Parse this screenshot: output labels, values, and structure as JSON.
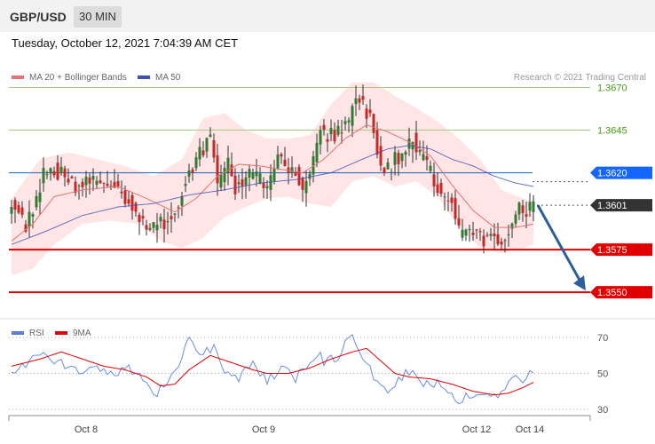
{
  "header": {
    "pair": "GBP/USD",
    "timeframe": "30 MIN"
  },
  "datetime": "Tuesday, October 12, 2021 7:04:39 AM CET",
  "legend": {
    "ma20": "MA 20 + Bollinger Bands",
    "ma50": "MA 50",
    "rsi": "RSI",
    "rsi_ma": "9MA"
  },
  "credit": "Research © 2021 Trading Central",
  "colors": {
    "bullish": "#2e7d32",
    "bearish": "#c62828",
    "ma20": "#e57373",
    "ma50": "#3f51b5",
    "bollinger": "#ffe0e0",
    "resistance": "#a5c97f",
    "pivot": "#1565c0",
    "support": "#e00000"
  },
  "chart_data": [
    {
      "type": "candlestick",
      "ylim": [
        1.3535,
        1.369
      ],
      "levels": [
        {
          "value": 1.367,
          "label": "1.3670",
          "kind": "resistance"
        },
        {
          "value": 1.3645,
          "label": "1.3645",
          "kind": "resistance"
        },
        {
          "value": 1.362,
          "label": "1.3620",
          "kind": "pivot"
        },
        {
          "value": 1.3601,
          "label": "1.3601",
          "kind": "last"
        },
        {
          "value": 1.3575,
          "label": "1.3575",
          "kind": "support"
        },
        {
          "value": 1.355,
          "label": "1.3550",
          "kind": "support"
        }
      ],
      "x_ticks": [
        {
          "label": "Oct 8",
          "index": 21
        },
        {
          "label": "Oct 9",
          "index": 71
        },
        {
          "label": "Oct 12",
          "index": 131
        },
        {
          "label": "Oct 14",
          "index": 146
        }
      ],
      "close_path": [
        [
          0,
          1.3605
        ],
        [
          4,
          1.3588
        ],
        [
          6,
          1.36
        ],
        [
          9,
          1.362
        ],
        [
          12,
          1.3622
        ],
        [
          18,
          1.3612
        ],
        [
          24,
          1.3615
        ],
        [
          30,
          1.3612
        ],
        [
          34,
          1.36
        ],
        [
          38,
          1.3588
        ],
        [
          43,
          1.359
        ],
        [
          47,
          1.3603
        ],
        [
          50,
          1.362
        ],
        [
          53,
          1.3632
        ],
        [
          56,
          1.364
        ],
        [
          58,
          1.3615
        ],
        [
          61,
          1.3625
        ],
        [
          63,
          1.3612
        ],
        [
          66,
          1.3618
        ],
        [
          70,
          1.3616
        ],
        [
          72,
          1.361
        ],
        [
          75,
          1.3632
        ],
        [
          77,
          1.3625
        ],
        [
          80,
          1.3622
        ],
        [
          82,
          1.3608
        ],
        [
          85,
          1.3628
        ],
        [
          87,
          1.3645
        ],
        [
          89,
          1.364
        ],
        [
          92,
          1.3645
        ],
        [
          95,
          1.365
        ],
        [
          97,
          1.3665
        ],
        [
          99,
          1.366
        ],
        [
          101,
          1.3652
        ],
        [
          103,
          1.3632
        ],
        [
          105,
          1.362
        ],
        [
          108,
          1.3628
        ],
        [
          111,
          1.3632
        ],
        [
          113,
          1.364
        ],
        [
          115,
          1.363
        ],
        [
          117,
          1.3623
        ],
        [
          120,
          1.3612
        ],
        [
          122,
          1.3606
        ],
        [
          124,
          1.3602
        ],
        [
          126,
          1.3586
        ],
        [
          128,
          1.3583
        ],
        [
          130,
          1.3586
        ],
        [
          133,
          1.358
        ],
        [
          136,
          1.3583
        ],
        [
          138,
          1.3579
        ],
        [
          140,
          1.3588
        ],
        [
          142,
          1.3599
        ],
        [
          145,
          1.3598
        ],
        [
          147,
          1.3601
        ]
      ],
      "ma20_path": [
        [
          0,
          1.358
        ],
        [
          6,
          1.359
        ],
        [
          12,
          1.3606
        ],
        [
          20,
          1.361
        ],
        [
          30,
          1.3612
        ],
        [
          38,
          1.3605
        ],
        [
          46,
          1.3597
        ],
        [
          52,
          1.3605
        ],
        [
          58,
          1.3618
        ],
        [
          64,
          1.3625
        ],
        [
          70,
          1.3624
        ],
        [
          76,
          1.3622
        ],
        [
          82,
          1.362
        ],
        [
          88,
          1.3628
        ],
        [
          94,
          1.364
        ],
        [
          100,
          1.3648
        ],
        [
          106,
          1.3644
        ],
        [
          112,
          1.3638
        ],
        [
          118,
          1.363
        ],
        [
          124,
          1.3613
        ],
        [
          130,
          1.3598
        ],
        [
          136,
          1.3588
        ],
        [
          142,
          1.3588
        ],
        [
          147,
          1.359
        ]
      ],
      "bollinger_upper": [
        [
          0,
          1.3605
        ],
        [
          8,
          1.3628
        ],
        [
          16,
          1.3632
        ],
        [
          24,
          1.3628
        ],
        [
          32,
          1.3624
        ],
        [
          40,
          1.3618
        ],
        [
          48,
          1.3628
        ],
        [
          54,
          1.3652
        ],
        [
          60,
          1.3655
        ],
        [
          66,
          1.3645
        ],
        [
          72,
          1.364
        ],
        [
          78,
          1.364
        ],
        [
          84,
          1.3642
        ],
        [
          90,
          1.366
        ],
        [
          96,
          1.3673
        ],
        [
          102,
          1.3673
        ],
        [
          108,
          1.3665
        ],
        [
          114,
          1.3658
        ],
        [
          120,
          1.365
        ],
        [
          126,
          1.364
        ],
        [
          132,
          1.3628
        ],
        [
          138,
          1.361
        ],
        [
          144,
          1.3605
        ],
        [
          147,
          1.3603
        ]
      ],
      "bollinger_lower": [
        [
          0,
          1.356
        ],
        [
          6,
          1.3564
        ],
        [
          12,
          1.3578
        ],
        [
          20,
          1.359
        ],
        [
          28,
          1.3592
        ],
        [
          36,
          1.359
        ],
        [
          42,
          1.358
        ],
        [
          48,
          1.3576
        ],
        [
          54,
          1.3582
        ],
        [
          60,
          1.3594
        ],
        [
          66,
          1.36
        ],
        [
          72,
          1.3605
        ],
        [
          78,
          1.3606
        ],
        [
          84,
          1.3602
        ],
        [
          90,
          1.36
        ],
        [
          96,
          1.3615
        ],
        [
          102,
          1.3618
        ],
        [
          108,
          1.3612
        ],
        [
          114,
          1.3615
        ],
        [
          120,
          1.3606
        ],
        [
          126,
          1.3588
        ],
        [
          132,
          1.3576
        ],
        [
          138,
          1.3573
        ],
        [
          144,
          1.3576
        ],
        [
          147,
          1.3578
        ]
      ],
      "ma50_path": [
        [
          0,
          1.3578
        ],
        [
          10,
          1.3586
        ],
        [
          20,
          1.3595
        ],
        [
          30,
          1.36
        ],
        [
          40,
          1.3602
        ],
        [
          50,
          1.3607
        ],
        [
          60,
          1.361
        ],
        [
          70,
          1.3614
        ],
        [
          80,
          1.3616
        ],
        [
          90,
          1.362
        ],
        [
          100,
          1.3629
        ],
        [
          106,
          1.3634
        ],
        [
          112,
          1.3636
        ],
        [
          118,
          1.3634
        ],
        [
          124,
          1.3628
        ],
        [
          130,
          1.3624
        ],
        [
          136,
          1.3618
        ],
        [
          142,
          1.3614
        ],
        [
          147,
          1.3612
        ]
      ],
      "projection": {
        "from": 1.3601,
        "to": 1.355
      }
    },
    {
      "type": "line",
      "name": "RSI",
      "ylim": [
        20,
        80
      ],
      "y_ticks": [
        70,
        50,
        30
      ],
      "rsi_path": [
        [
          0,
          50
        ],
        [
          4,
          56
        ],
        [
          8,
          60
        ],
        [
          12,
          57
        ],
        [
          16,
          55
        ],
        [
          20,
          49
        ],
        [
          24,
          52
        ],
        [
          28,
          50
        ],
        [
          32,
          53
        ],
        [
          36,
          48
        ],
        [
          40,
          38
        ],
        [
          44,
          44
        ],
        [
          48,
          60
        ],
        [
          50,
          68
        ],
        [
          54,
          62
        ],
        [
          57,
          65
        ],
        [
          60,
          50
        ],
        [
          64,
          48
        ],
        [
          68,
          54
        ],
        [
          72,
          45
        ],
        [
          76,
          54
        ],
        [
          80,
          46
        ],
        [
          84,
          58
        ],
        [
          86,
          62
        ],
        [
          88,
          56
        ],
        [
          92,
          60
        ],
        [
          94,
          66
        ],
        [
          96,
          73
        ],
        [
          98,
          60
        ],
        [
          100,
          54
        ],
        [
          103,
          46
        ],
        [
          106,
          42
        ],
        [
          109,
          47
        ],
        [
          112,
          52
        ],
        [
          116,
          45
        ],
        [
          120,
          44
        ],
        [
          124,
          39
        ],
        [
          126,
          35
        ],
        [
          128,
          38
        ],
        [
          130,
          37
        ],
        [
          134,
          40
        ],
        [
          138,
          38
        ],
        [
          141,
          48
        ],
        [
          144,
          46
        ],
        [
          147,
          51
        ]
      ],
      "ma9_path": [
        [
          0,
          54
        ],
        [
          8,
          58
        ],
        [
          14,
          62
        ],
        [
          20,
          58
        ],
        [
          26,
          54
        ],
        [
          32,
          52
        ],
        [
          38,
          48
        ],
        [
          42,
          43
        ],
        [
          46,
          44
        ],
        [
          50,
          52
        ],
        [
          56,
          60
        ],
        [
          62,
          56
        ],
        [
          68,
          52
        ],
        [
          72,
          50
        ],
        [
          78,
          50
        ],
        [
          84,
          53
        ],
        [
          90,
          58
        ],
        [
          96,
          62
        ],
        [
          100,
          64
        ],
        [
          104,
          57
        ],
        [
          108,
          50
        ],
        [
          112,
          48
        ],
        [
          118,
          47
        ],
        [
          124,
          44
        ],
        [
          130,
          40
        ],
        [
          136,
          38
        ],
        [
          140,
          39
        ],
        [
          144,
          42
        ],
        [
          147,
          45
        ]
      ]
    }
  ]
}
